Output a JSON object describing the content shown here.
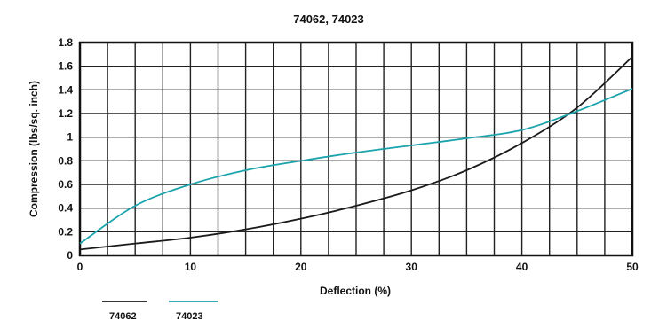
{
  "chart_data": {
    "type": "line",
    "title": "74062, 74023",
    "xlabel": "Deflection (%)",
    "ylabel": "Compression (lbs/sq. inch)",
    "xlim": [
      0,
      50
    ],
    "ylim": [
      0,
      1.8
    ],
    "xticks": [
      "0",
      "10",
      "20",
      "30",
      "40",
      "50"
    ],
    "yticks": [
      "0",
      "0.2",
      "0.4",
      "0.6",
      "0.8",
      "1",
      "1.2",
      "1.4",
      "1.6",
      "1.8"
    ],
    "grid": true,
    "legend_position": "bottom-left",
    "series": [
      {
        "name": "74062",
        "color": "#1a1a1a",
        "x": [
          0,
          5,
          10,
          15,
          20,
          25,
          30,
          35,
          40,
          45,
          50
        ],
        "y": [
          0.05,
          0.1,
          0.15,
          0.22,
          0.31,
          0.42,
          0.55,
          0.72,
          0.95,
          1.25,
          1.68
        ]
      },
      {
        "name": "74023",
        "color": "#1aa3ad",
        "x": [
          0,
          5,
          10,
          15,
          20,
          25,
          30,
          35,
          40,
          45,
          50
        ],
        "y": [
          0.1,
          0.42,
          0.6,
          0.72,
          0.8,
          0.87,
          0.93,
          0.99,
          1.06,
          1.22,
          1.41
        ]
      }
    ]
  }
}
